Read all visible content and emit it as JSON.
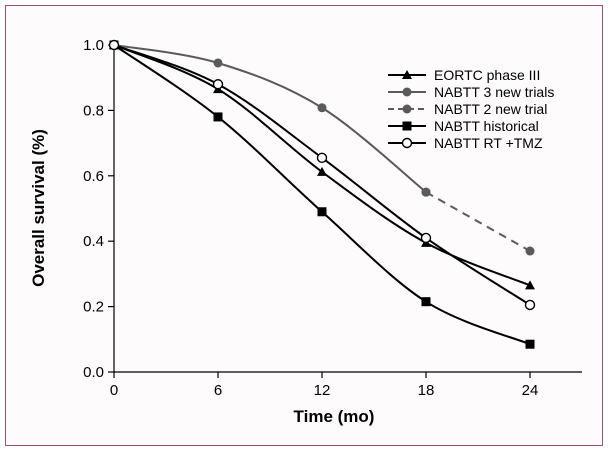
{
  "chart_data": {
    "type": "line",
    "title": "",
    "xlabel": "Time (mo)",
    "ylabel": "Overall survival (%)",
    "x": [
      0,
      6,
      12,
      18,
      24
    ],
    "xticks": [
      "0",
      "6",
      "12",
      "18",
      "24"
    ],
    "yticks": [
      "0.0",
      "0.2",
      "0.4",
      "0.6",
      "0.8",
      "1.0"
    ],
    "xlim": [
      0,
      27
    ],
    "ylim": [
      0,
      1.0
    ],
    "legend_position": "top-right",
    "grid": false,
    "series": [
      {
        "name": "EORTC phase III",
        "marker": "triangle",
        "color": "#000000",
        "dashed": false,
        "points": [
          [
            0,
            1.0
          ],
          [
            6,
            0.865
          ],
          [
            12,
            0.612
          ],
          [
            18,
            0.395
          ],
          [
            24,
            0.265
          ]
        ]
      },
      {
        "name": "NABTT 3 new trials",
        "marker": "circle",
        "color": "#5a5a5a",
        "dashed": false,
        "points": [
          [
            0,
            1.0
          ],
          [
            6,
            0.945
          ],
          [
            12,
            0.808
          ],
          [
            18,
            0.55
          ]
        ]
      },
      {
        "name": "NABTT 2 new trial",
        "marker": "circle",
        "color": "#5a5a5a",
        "dashed": true,
        "points": [
          [
            18,
            0.55
          ],
          [
            24,
            0.37
          ]
        ]
      },
      {
        "name": "NABTT historical",
        "marker": "square",
        "color": "#000000",
        "dashed": false,
        "points": [
          [
            0,
            1.0
          ],
          [
            6,
            0.78
          ],
          [
            12,
            0.49
          ],
          [
            18,
            0.215
          ],
          [
            24,
            0.085
          ]
        ]
      },
      {
        "name": "NABTT RT +TMZ",
        "marker": "open-circle",
        "color": "#000000",
        "dashed": false,
        "points": [
          [
            0,
            1.0
          ],
          [
            6,
            0.88
          ],
          [
            12,
            0.655
          ],
          [
            18,
            0.41
          ],
          [
            24,
            0.205
          ]
        ]
      }
    ]
  }
}
